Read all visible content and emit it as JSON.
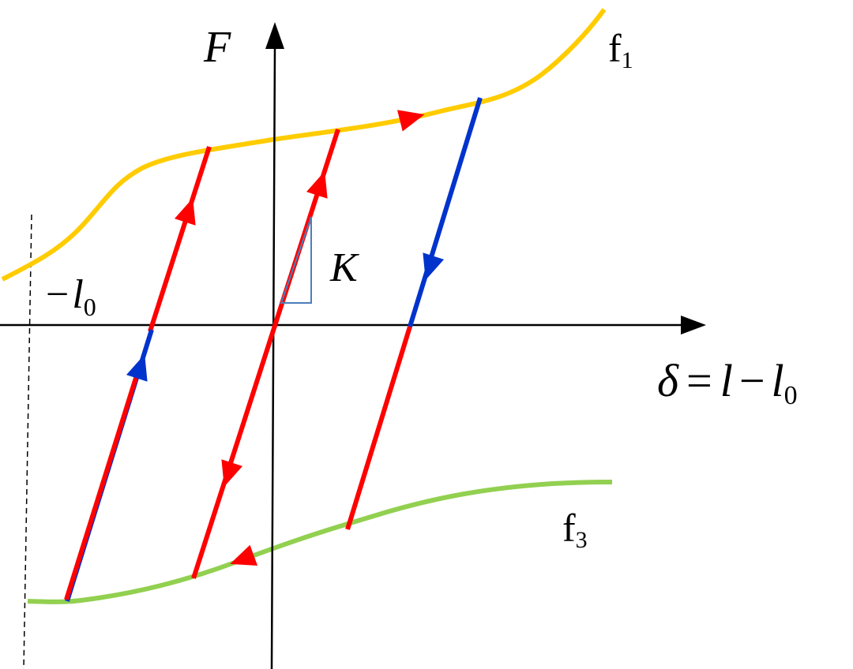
{
  "labels": {
    "y_axis": "F",
    "x_axis_lhs": "δ",
    "x_axis_eq": "=",
    "x_axis_l": "l",
    "x_axis_minus": "−",
    "x_axis_l0_base": "l",
    "x_axis_l0_sub": "0",
    "neg_l0_minus": "−",
    "neg_l0_base": "l",
    "neg_l0_sub": "0",
    "stiffness": "K",
    "f1_base": "f",
    "f1_sub": "1",
    "f3_base": "f",
    "f3_sub": "3"
  },
  "colors": {
    "f1_curve": "#FFCC00",
    "f3_curve": "#92D050",
    "loading_path": "#FF0000",
    "unloading_path": "#0033CC",
    "stiffness_triangle": "#4A7EBB",
    "axes": "#000000"
  },
  "icons": [
    "arrowhead-icon"
  ]
}
